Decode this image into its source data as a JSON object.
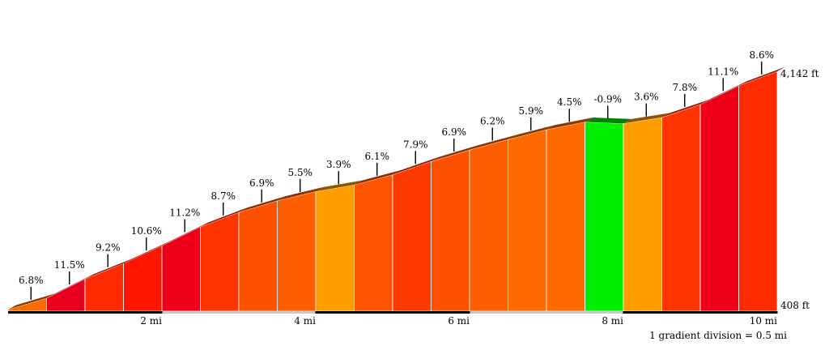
{
  "chart_data": {
    "type": "area",
    "title": "",
    "xlabel": "",
    "ylabel": "",
    "x_unit": "mi",
    "segment_length_mi": 0.5,
    "segment_start_mi": 0.0,
    "start_elevation_ft": 408,
    "end_elevation_ft": 4142,
    "xlim": [
      0,
      10
    ],
    "x_ticks": [
      {
        "value": 2,
        "label": "2 mi"
      },
      {
        "value": 4,
        "label": "4 mi"
      },
      {
        "value": 6,
        "label": "6 mi"
      },
      {
        "value": 8,
        "label": "8 mi"
      },
      {
        "value": 10,
        "label": "10 mi"
      }
    ],
    "elevation_labels": [
      "4,142 ft",
      "408 ft"
    ],
    "gradients": [
      {
        "value": 6.8,
        "label": "6.8%"
      },
      {
        "value": 11.5,
        "label": "11.5%"
      },
      {
        "value": 9.2,
        "label": "9.2%"
      },
      {
        "value": 10.6,
        "label": "10.6%"
      },
      {
        "value": 11.2,
        "label": "11.2%"
      },
      {
        "value": 8.7,
        "label": "8.7%"
      },
      {
        "value": 6.9,
        "label": "6.9%"
      },
      {
        "value": 5.5,
        "label": "5.5%"
      },
      {
        "value": 3.9,
        "label": "3.9%"
      },
      {
        "value": 6.1,
        "label": "6.1%"
      },
      {
        "value": 7.9,
        "label": "7.9%"
      },
      {
        "value": 6.9,
        "label": "6.9%"
      },
      {
        "value": 6.2,
        "label": "6.2%"
      },
      {
        "value": 5.9,
        "label": "5.9%"
      },
      {
        "value": 4.5,
        "label": "4.5%"
      },
      {
        "value": -0.9,
        "label": "-0.9%"
      },
      {
        "value": 3.6,
        "label": "3.6%"
      },
      {
        "value": 7.8,
        "label": "7.8%"
      },
      {
        "value": 11.1,
        "label": "11.1%"
      },
      {
        "value": 8.6,
        "label": "8.6%"
      }
    ],
    "segment_colors": [
      "#FF6A00",
      "#E8001E",
      "#FF2A00",
      "#FF1500",
      "#F00018",
      "#FF3300",
      "#FF5200",
      "#FF5E00",
      "#FF9C00",
      "#FF5500",
      "#FF3A00",
      "#FF5200",
      "#FF5E00",
      "#FF6A00",
      "#FF6A00",
      "#00F000",
      "#FF9C00",
      "#FF3300",
      "#F00018",
      "#FF2A00"
    ],
    "gradient_division_note": "1 gradient division = 0.5 mi",
    "grid": false,
    "legend": "none"
  }
}
